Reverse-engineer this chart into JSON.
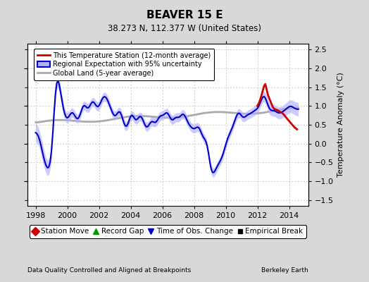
{
  "title": "BEAVER 15 E",
  "subtitle": "38.273 N, 112.377 W (United States)",
  "xlabel_bottom": "Data Quality Controlled and Aligned at Breakpoints",
  "xlabel_right": "Berkeley Earth",
  "ylabel_right": "Temperature Anomaly (°C)",
  "xlim": [
    1997.5,
    2015.2
  ],
  "ylim": [
    -1.65,
    2.65
  ],
  "yticks": [
    -1.5,
    -1.0,
    -0.5,
    0.0,
    0.5,
    1.0,
    1.5,
    2.0,
    2.5
  ],
  "xticks": [
    1998,
    2000,
    2002,
    2004,
    2006,
    2008,
    2010,
    2012,
    2014
  ],
  "bg_color": "#d8d8d8",
  "plot_bg_color": "#ffffff",
  "grid_color": "#bbbbbb",
  "regional_line_color": "#0000cc",
  "regional_fill_color": "#b0b0ff",
  "station_line_color": "#cc0000",
  "global_line_color": "#aaaaaa",
  "legend_label_station": "This Temperature Station (12-month average)",
  "legend_label_regional": "Regional Expectation with 95% uncertainty",
  "legend_label_global": "Global Land (5-year average)",
  "bottom_legend": [
    {
      "label": "Station Move",
      "marker": "D",
      "color": "#cc0000"
    },
    {
      "label": "Record Gap",
      "marker": "^",
      "color": "#009900"
    },
    {
      "label": "Time of Obs. Change",
      "marker": "v",
      "color": "#0000cc"
    },
    {
      "label": "Empirical Break",
      "marker": "s",
      "color": "#000000"
    }
  ]
}
